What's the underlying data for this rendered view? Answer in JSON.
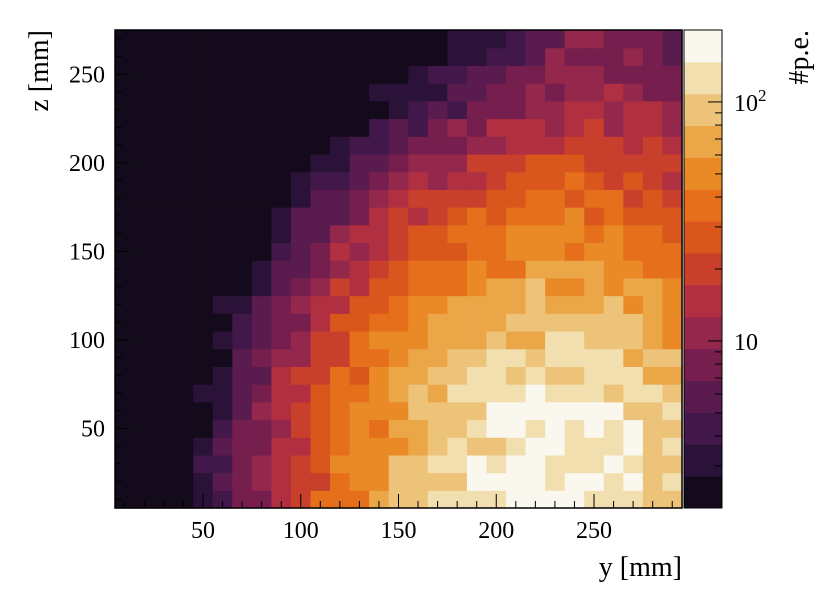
{
  "chart_data": {
    "type": "heatmap",
    "xlabel": "y [mm]",
    "ylabel": "z [mm]",
    "colorbar_label": "#p.e.",
    "colorbar_scale": "log",
    "colorbar_ticks": [
      {
        "value": 10,
        "label": "10"
      },
      {
        "value": 100,
        "label": "10",
        "sup": "2"
      }
    ],
    "x_range": [
      5,
      295
    ],
    "y_range": [
      5,
      275
    ],
    "x_ticks": [
      50,
      100,
      150,
      200,
      250
    ],
    "y_ticks": [
      50,
      100,
      150,
      200,
      250
    ],
    "grid": false,
    "colormap": [
      "#130b1b",
      "#2a1238",
      "#411849",
      "#5a1c4f",
      "#761f4e",
      "#93274c",
      "#b02f40",
      "#c8402c",
      "#d9561c",
      "#e56f1a",
      "#e98a26",
      "#eba648",
      "#edc379",
      "#f1dfaf",
      "#faf7ee"
    ],
    "approximate_field": "values peak near y=230 mm, z=15 mm and decrease with distance",
    "cells": {
      "y_centers": [
        10,
        20,
        30,
        40,
        50,
        60,
        70,
        80,
        90,
        100,
        110,
        120,
        130,
        140,
        150,
        160,
        170,
        180,
        190,
        200,
        210,
        220,
        230,
        240,
        250,
        260,
        270,
        280,
        290
      ],
      "z_centers": [
        10,
        20,
        30,
        40,
        50,
        60,
        70,
        80,
        90,
        100,
        110,
        120,
        130,
        140,
        150,
        160,
        170,
        180,
        190,
        200,
        210,
        220,
        230,
        240,
        250,
        260,
        270
      ],
      "peak": {
        "y": 230,
        "z": 15,
        "value": 160
      },
      "floor_value": 2
    }
  }
}
